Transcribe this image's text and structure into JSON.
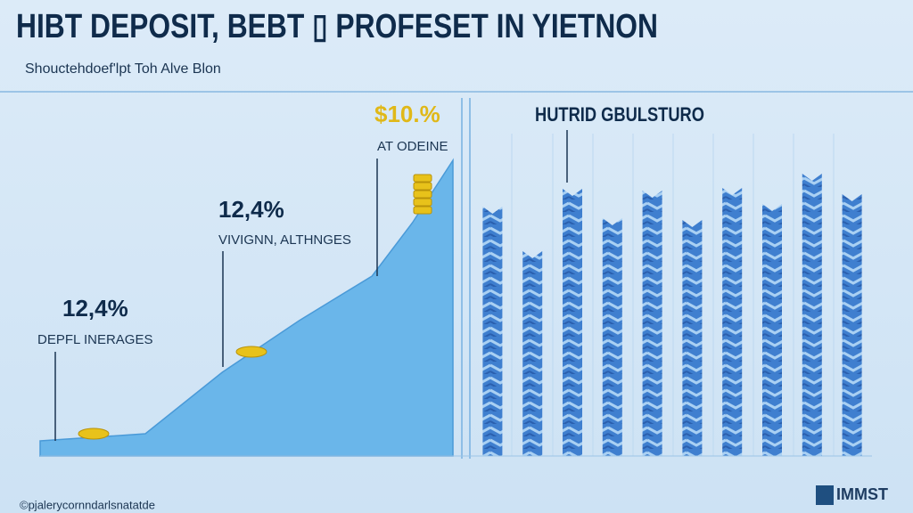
{
  "header": {
    "title": "HIBT DEPOSIT, BEBT ▯ PROFESET IN YIETNON",
    "subtitle": "Shoucteh­doef'lpt Toh Alve Blon"
  },
  "chart_data": [
    {
      "type": "area",
      "color": "#6ab6ea",
      "x": [
        0,
        2.6,
        4.5,
        6.4,
        8.2,
        9.2,
        10.2
      ],
      "values": [
        17,
        25,
        94,
        152,
        202,
        262,
        332
      ],
      "xlim": [
        0,
        10.2
      ],
      "ylim": [
        0,
        350
      ],
      "annotations": [
        {
          "value_label": "12,4%",
          "text": "DEPFL INERAGES"
        },
        {
          "value_label": "12,4%",
          "text": "VIVIGNN, ALTHNGES"
        },
        {
          "value_label": "$10.%",
          "text": "AT ODEINE"
        }
      ]
    },
    {
      "type": "bar",
      "title": "HUTRID GBULSTURO",
      "color": "#3f7fcf",
      "categories": [
        null,
        null,
        null,
        null,
        null,
        null,
        null,
        null,
        null,
        null
      ],
      "values": [
        280,
        230,
        300,
        267,
        298,
        265,
        301,
        283,
        317,
        294
      ],
      "ylim": [
        0,
        350
      ]
    }
  ],
  "footer": {
    "note": "©pjalerycornndarlsnatatde",
    "logo": "IMMST"
  }
}
